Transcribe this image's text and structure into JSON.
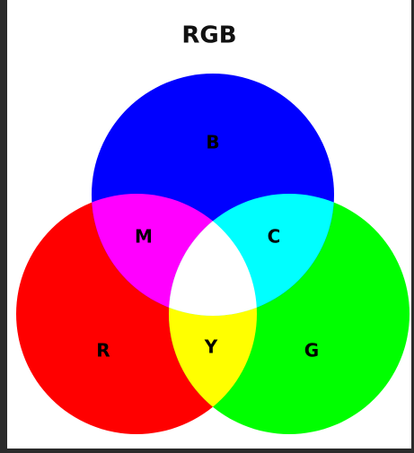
{
  "title": "RGB",
  "regions": [
    {
      "label": "B"
    },
    {
      "label": "M"
    },
    {
      "label": "C"
    },
    {
      "label": "R"
    },
    {
      "label": "Y"
    },
    {
      "label": "G"
    }
  ]
}
